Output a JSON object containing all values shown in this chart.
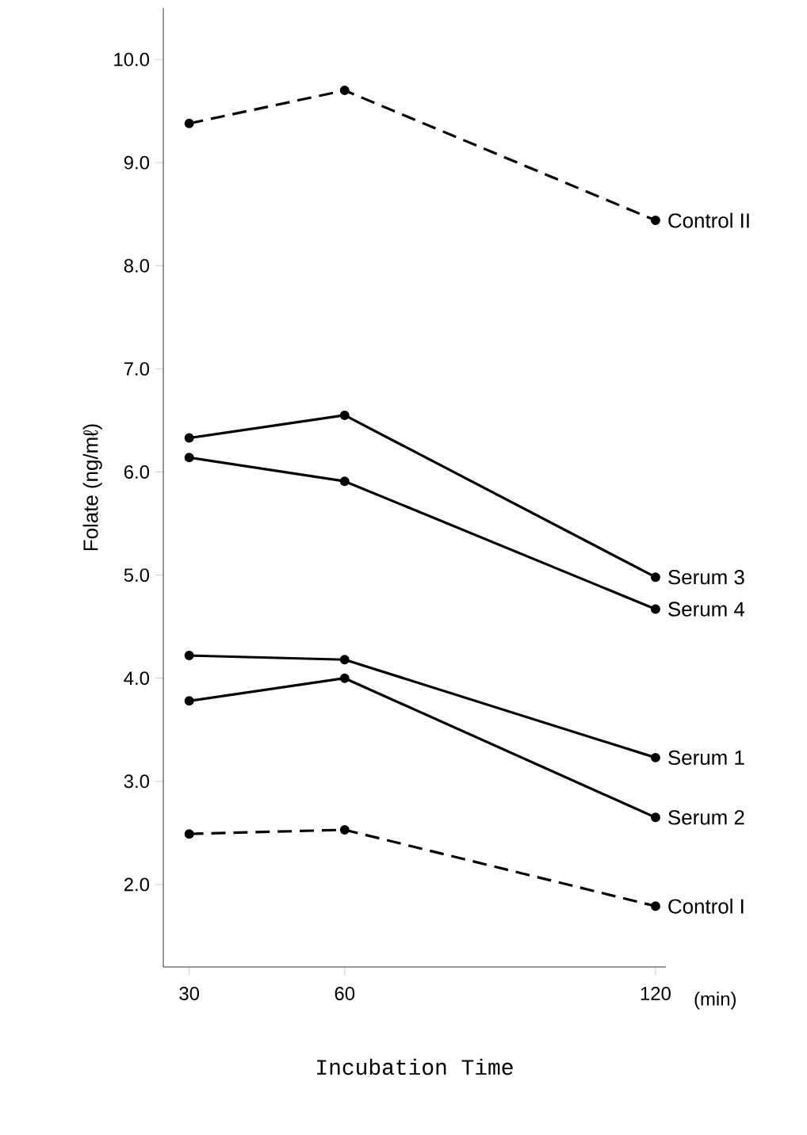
{
  "chart_data": {
    "type": "line",
    "xlabel": "Incubation Time",
    "ylabel": "Folate (ng/mℓ)",
    "x": [
      30,
      60,
      120
    ],
    "series": [
      {
        "name": "Control II",
        "color": "#000000",
        "line_style": "dashed",
        "values": [
          9.38,
          9.7,
          8.44
        ]
      },
      {
        "name": "Serum 3",
        "color": "#000000",
        "line_style": "solid",
        "values": [
          6.33,
          6.55,
          4.98
        ]
      },
      {
        "name": "Serum 4",
        "color": "#000000",
        "line_style": "solid",
        "values": [
          6.14,
          5.91,
          4.67
        ]
      },
      {
        "name": "Serum 1",
        "color": "#000000",
        "line_style": "solid",
        "values": [
          4.22,
          4.18,
          3.23
        ]
      },
      {
        "name": "Serum 2",
        "color": "#000000",
        "line_style": "solid",
        "values": [
          3.78,
          4.0,
          2.65
        ]
      },
      {
        "name": "Control I",
        "color": "#000000",
        "line_style": "dashed",
        "values": [
          2.49,
          2.53,
          1.79
        ]
      }
    ],
    "xlim": [
      25,
      122
    ],
    "ylim": [
      1.2,
      10.5
    ],
    "xticks": [
      30,
      60,
      120
    ],
    "yticks": [
      {
        "value": 2,
        "label": "2.0"
      },
      {
        "value": 3,
        "label": "3.0"
      },
      {
        "value": 4,
        "label": "4.0"
      },
      {
        "value": 5,
        "label": "5.0"
      },
      {
        "value": 6,
        "label": "6.0"
      },
      {
        "value": 7,
        "label": "7.0"
      },
      {
        "value": 8,
        "label": "8.0"
      },
      {
        "value": 9,
        "label": "9.0"
      },
      {
        "value": 10,
        "label": "10.0"
      }
    ],
    "marker": "circle",
    "grid": false,
    "legend": false,
    "annotations": [
      "(min)"
    ]
  }
}
